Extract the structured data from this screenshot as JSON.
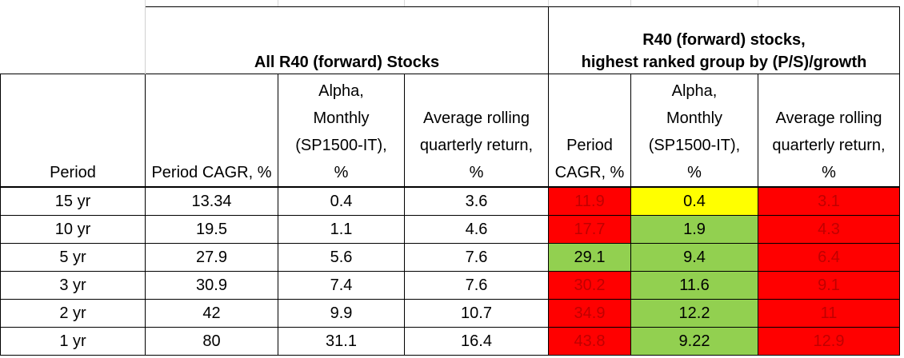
{
  "table": {
    "group_headers": {
      "all_stocks": "All R40 (forward) Stocks",
      "top_group_line1": "R40 (forward) stocks,",
      "top_group_line2": "highest ranked group by (P/S)/growth"
    },
    "columns": [
      {
        "lines": [
          "Period"
        ]
      },
      {
        "lines": [
          "Period CAGR, %"
        ]
      },
      {
        "lines": [
          "Alpha,",
          "Monthly",
          "(SP1500-IT),",
          "%"
        ]
      },
      {
        "lines": [
          "Average rolling",
          "quarterly return,",
          "%"
        ]
      },
      {
        "lines": [
          "Period",
          "CAGR, %"
        ]
      },
      {
        "lines": [
          "Alpha,",
          "Monthly",
          "(SP1500-IT),",
          "%"
        ]
      },
      {
        "lines": [
          "Average rolling",
          "quarterly return,",
          "%"
        ]
      }
    ],
    "rows": [
      {
        "period": "15 yr",
        "cagr": "13.34",
        "alpha": "0.4",
        "avg_q": "3.6",
        "top_cagr": "11.9",
        "top_alpha": "0.4",
        "top_avg_q": "3.1"
      },
      {
        "period": "10 yr",
        "cagr": "19.5",
        "alpha": "1.1",
        "avg_q": "4.6",
        "top_cagr": "17.7",
        "top_alpha": "1.9",
        "top_avg_q": "4.3"
      },
      {
        "period": "5 yr",
        "cagr": "27.9",
        "alpha": "5.6",
        "avg_q": "7.6",
        "top_cagr": "29.1",
        "top_alpha": "9.4",
        "top_avg_q": "6.4"
      },
      {
        "period": "3 yr",
        "cagr": "30.9",
        "alpha": "7.4",
        "avg_q": "7.6",
        "top_cagr": "30.2",
        "top_alpha": "11.6",
        "top_avg_q": "9.1"
      },
      {
        "period": "2 yr",
        "cagr": "42",
        "alpha": "9.9",
        "avg_q": "10.7",
        "top_cagr": "34.9",
        "top_alpha": "12.2",
        "top_avg_q": "11"
      },
      {
        "period": "1 yr",
        "cagr": "80",
        "alpha": "31.1",
        "avg_q": "16.4",
        "top_cagr": "43.8",
        "top_alpha": "9.22",
        "top_avg_q": "12.9"
      }
    ],
    "cell_fills": [
      [
        "red",
        "yellow",
        "red"
      ],
      [
        "red",
        "green",
        "red"
      ],
      [
        "green",
        "green",
        "red"
      ],
      [
        "red",
        "green",
        "red"
      ],
      [
        "red",
        "green",
        "red"
      ],
      [
        "red",
        "green",
        "red"
      ]
    ]
  },
  "colors": {
    "red": "#ff0000",
    "red_text": "#c00000",
    "green": "#92d050",
    "yellow": "#ffff00"
  }
}
